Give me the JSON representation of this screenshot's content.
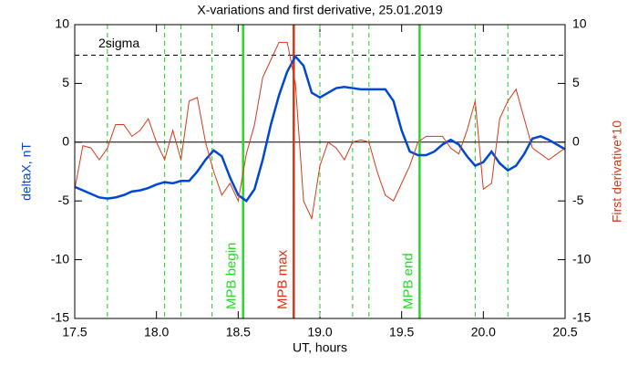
{
  "chart_data": {
    "type": "line",
    "title": "X-variations and first derivative, 25.01.2019",
    "xlabel": "UT, hours",
    "ylabel": "deltaX, nT",
    "y2label": "First derivative*10",
    "xlim": [
      17.5,
      20.5
    ],
    "ylim": [
      -15,
      10
    ],
    "y2lim": [
      -15,
      10
    ],
    "xticks": [
      17.5,
      {
        "value": 18,
        "label": "18.0"
      },
      18.5,
      {
        "value": 19,
        "label": "19.0"
      },
      19.5,
      {
        "value": 20,
        "label": "20.0"
      },
      20.5
    ],
    "yticks": [
      10,
      5,
      0,
      -5,
      -10,
      -15
    ],
    "y2ticks": [
      10,
      5,
      0,
      -5,
      -10,
      -15
    ],
    "x": [
      17.5,
      17.55,
      17.6,
      17.65,
      17.7,
      17.75,
      17.8,
      17.85,
      17.9,
      17.95,
      18.0,
      18.05,
      18.1,
      18.15,
      18.2,
      18.25,
      18.3,
      18.35,
      18.4,
      18.45,
      18.5,
      18.55,
      18.6,
      18.65,
      18.7,
      18.75,
      18.8,
      18.85,
      18.9,
      18.95,
      19.0,
      19.05,
      19.1,
      19.15,
      19.2,
      19.25,
      19.3,
      19.35,
      19.4,
      19.45,
      19.5,
      19.55,
      19.6,
      19.65,
      19.7,
      19.75,
      19.8,
      19.85,
      19.9,
      19.95,
      20.0,
      20.05,
      20.1,
      20.15,
      20.2,
      20.25,
      20.3,
      20.35,
      20.4,
      20.45,
      20.5
    ],
    "series": [
      {
        "name": "deltaX",
        "color": "#0047d6",
        "axis": "y",
        "values": [
          -3.8,
          -4.1,
          -4.4,
          -4.7,
          -4.8,
          -4.7,
          -4.5,
          -4.2,
          -4.1,
          -3.9,
          -3.6,
          -3.4,
          -3.5,
          -3.3,
          -3.3,
          -2.5,
          -1.5,
          -0.7,
          -1.2,
          -3.0,
          -4.5,
          -5.0,
          -4.0,
          -1.5,
          1.5,
          4.0,
          6.0,
          7.3,
          6.5,
          4.2,
          3.8,
          4.2,
          4.6,
          4.7,
          4.6,
          4.5,
          4.5,
          4.5,
          4.5,
          3.5,
          1.0,
          -0.8,
          -1.1,
          -1.1,
          -0.8,
          -0.2,
          0.2,
          -0.2,
          -1.2,
          -2.0,
          -1.7,
          -0.8,
          -1.8,
          -2.4,
          -2.0,
          -1.0,
          0.3,
          0.5,
          0.2,
          -0.2,
          -0.6
        ]
      },
      {
        "name": "First derivative*10",
        "color": "#d43a1a",
        "axis": "y2",
        "values": [
          -4,
          -0.3,
          -0.5,
          -1.5,
          -0.5,
          1.5,
          1.5,
          0.5,
          1,
          2,
          0,
          -1.5,
          1,
          -1.5,
          3.5,
          3.8,
          0,
          -2.5,
          -4.5,
          -3.5,
          -5,
          -1,
          1.5,
          5.5,
          7,
          8.5,
          8.5,
          5,
          -5,
          -6.5,
          -2,
          0,
          -0.5,
          -1.5,
          0,
          0.2,
          0,
          -2.5,
          -4.5,
          -5,
          -3.5,
          -2,
          0,
          0.5,
          0.5,
          0.5,
          -0.5,
          -1,
          1,
          3.5,
          -4,
          -3.5,
          2,
          3.5,
          4.5,
          2,
          -0.5,
          -1,
          -1.5,
          -1.0,
          -0.5
        ]
      }
    ],
    "hlines": [
      {
        "value": 7.4,
        "label": "2sigma",
        "color": "#000000",
        "dashed": true
      },
      {
        "value": 0,
        "color": "#000000",
        "dashed": false
      }
    ],
    "dashed_vlines": {
      "color": "#22cc22",
      "values": [
        17.7,
        18.05,
        18.15,
        18.34,
        19.0,
        19.2,
        19.3,
        19.95,
        20.15
      ]
    },
    "marked_vlines": [
      {
        "value": 18.53,
        "label": "MPB begin",
        "color": "#22dd22"
      },
      {
        "value": 18.84,
        "label": "MPB max",
        "color": "#e03010"
      },
      {
        "value": 19.61,
        "label": "MPB end",
        "color": "#22dd22"
      }
    ]
  }
}
